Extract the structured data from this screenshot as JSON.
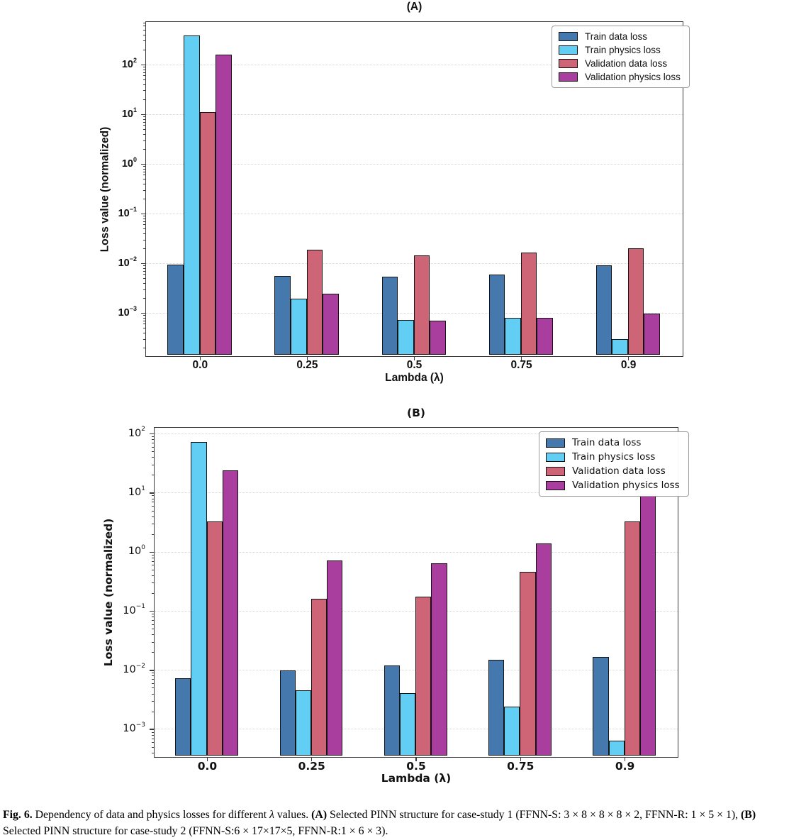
{
  "figure": {
    "caption_segments": [
      {
        "text": "Fig. 6.",
        "bold": true
      },
      {
        "text": "  Dependency of data and physics losses for different "
      },
      {
        "text": "λ",
        "italic": true
      },
      {
        "text": " values. "
      },
      {
        "text": "(A)",
        "bold": true
      },
      {
        "text": " Selected PINN structure for case-study 1 (FFNN-S: 3 × 8 × 8 × 8 × 2, FFNN-R: 1 × 5 × 1), "
      },
      {
        "text": "(B)",
        "bold": true
      },
      {
        "break": true
      },
      {
        "text": "Selected PINN structure for case-study 2 (FFNN-S:6 × 17×17×5, FFNN-R:1 × 6 × 3)."
      }
    ]
  },
  "chart_data": [
    {
      "type": "bar",
      "title": "(A)",
      "xlabel": "Lambda (λ)",
      "ylabel": "Loss value (normalized)",
      "yscale": "log",
      "grid": true,
      "legend_position": "upper right",
      "categories": [
        "0.0",
        "0.25",
        "0.5",
        "0.75",
        "0.9"
      ],
      "ytick_exponents": [
        2,
        1,
        0,
        -1,
        -2,
        -3
      ],
      "ylim": [
        0.00014,
        710
      ],
      "series": [
        {
          "name": "Train data loss",
          "color": "#4579AE",
          "values": [
            0.0092,
            0.0055,
            0.0052,
            0.0059,
            0.0089
          ]
        },
        {
          "name": "Train physics loss",
          "color": "#62CEF3",
          "values": [
            380,
            0.0019,
            0.00072,
            0.00078,
            0.00029
          ]
        },
        {
          "name": "Validation data loss",
          "color": "#CE6577",
          "values": [
            10.8,
            0.0185,
            0.014,
            0.0163,
            0.0197
          ]
        },
        {
          "name": "Validation physics loss",
          "color": "#A93E9F",
          "values": [
            158,
            0.0024,
            0.00068,
            0.00078,
            0.00095
          ]
        }
      ]
    },
    {
      "type": "bar",
      "title": "(B)",
      "xlabel": "Lambda (λ)",
      "ylabel": "Loss value (normalized)",
      "yscale": "log",
      "grid": true,
      "legend_position": "upper right",
      "categories": [
        "0.0",
        "0.25",
        "0.5",
        "0.75",
        "0.9"
      ],
      "ytick_exponents": [
        2,
        1,
        0,
        -1,
        -2,
        -3
      ],
      "ylim": [
        0.00035,
        124.5
      ],
      "series": [
        {
          "name": "Train data loss",
          "color": "#4579AE",
          "values": [
            0.0072,
            0.0097,
            0.012,
            0.0147,
            0.0165
          ]
        },
        {
          "name": "Train physics loss",
          "color": "#62CEF3",
          "values": [
            72,
            0.0045,
            0.004,
            0.0024,
            0.00063
          ]
        },
        {
          "name": "Validation data loss",
          "color": "#CE6577",
          "values": [
            3.2,
            0.158,
            0.172,
            0.45,
            3.2
          ]
        },
        {
          "name": "Validation physics loss",
          "color": "#A93E9F",
          "values": [
            24,
            0.7,
            0.63,
            1.39,
            9.5
          ]
        }
      ]
    }
  ]
}
